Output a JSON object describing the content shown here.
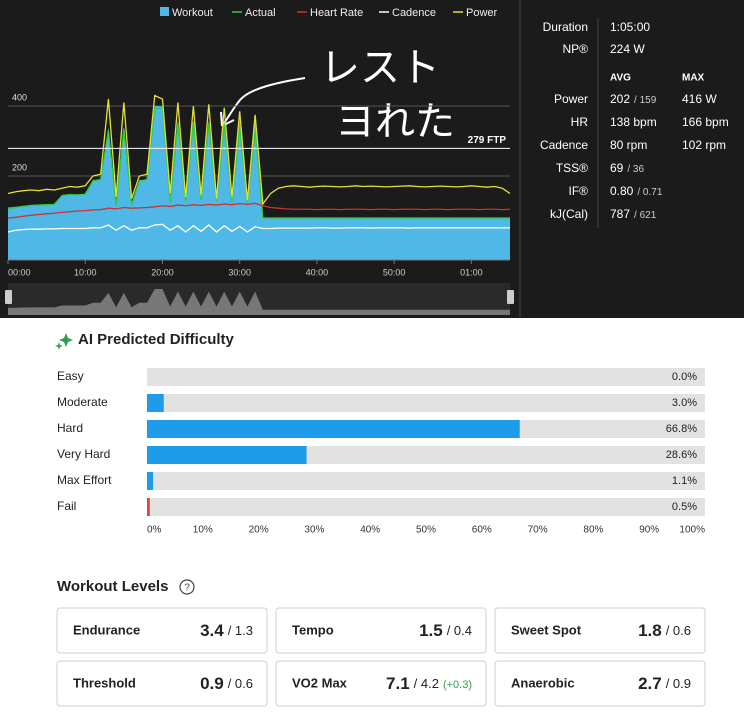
{
  "chart_data": [
    {
      "type": "line",
      "x": [
        0,
        1,
        2,
        3,
        4,
        5,
        6,
        7,
        8,
        9,
        10,
        11,
        12,
        13,
        14,
        15,
        16,
        17,
        18,
        19,
        20,
        21,
        22,
        23,
        24,
        25,
        26,
        27,
        28,
        29,
        30,
        31,
        32,
        33,
        34,
        35,
        36,
        37,
        38,
        39,
        40,
        41,
        42,
        43,
        44,
        45,
        46,
        47,
        48,
        49,
        50,
        51,
        52,
        53,
        54,
        55,
        56,
        57,
        58,
        59,
        60,
        61,
        62,
        63,
        64,
        65
      ],
      "series": [
        {
          "name": "Workout",
          "color": "#4fb8e6",
          "fill": true,
          "values": [
            110,
            112,
            115,
            117,
            118,
            118,
            118,
            146,
            146,
            146,
            146,
            189,
            189,
            340,
            120,
            340,
            120,
            189,
            189,
            400,
            400,
            130,
            360,
            130,
            360,
            130,
            360,
            130,
            360,
            130,
            360,
            130,
            360,
            80,
            80,
            80,
            80,
            80,
            80,
            80,
            80,
            80,
            80,
            80,
            80,
            80,
            80,
            80,
            80,
            80,
            80,
            80,
            80,
            80,
            80,
            80,
            80,
            80,
            80,
            80,
            80,
            80,
            80,
            80,
            80,
            80
          ]
        },
        {
          "name": "Actual",
          "color": "#2ecc40",
          "values": [
            105,
            110,
            113,
            116,
            117,
            118,
            119,
            144,
            147,
            146,
            148,
            186,
            190,
            330,
            115,
            335,
            118,
            185,
            190,
            392,
            398,
            125,
            352,
            128,
            355,
            131,
            350,
            127,
            348,
            125,
            340,
            122,
            330,
            80,
            80,
            80,
            80,
            80,
            80,
            80,
            80,
            80,
            80,
            80,
            80,
            80,
            80,
            80,
            80,
            80,
            80,
            80,
            80,
            80,
            80,
            80,
            80,
            80,
            80,
            80,
            80,
            80,
            80,
            80,
            80,
            80
          ]
        },
        {
          "name": "Heart Rate",
          "color": "#d0302f",
          "values": [
            80,
            82,
            85,
            88,
            90,
            92,
            94,
            96,
            98,
            100,
            101,
            103,
            104,
            108,
            106,
            110,
            108,
            109,
            110,
            112,
            115,
            113,
            117,
            115,
            118,
            116,
            119,
            117,
            120,
            118,
            121,
            119,
            122,
            115,
            110,
            108,
            106,
            105,
            105,
            105,
            104,
            105,
            105,
            104,
            105,
            105,
            105,
            104,
            105,
            105,
            104,
            105,
            105,
            105,
            104,
            105,
            105,
            104,
            105,
            105,
            105,
            104,
            105,
            105,
            104,
            105
          ]
        },
        {
          "name": "Cadence",
          "color": "#ffffff",
          "values": [
            40,
            45,
            47,
            48,
            48,
            49,
            49,
            50,
            50,
            50,
            50,
            52,
            52,
            60,
            45,
            58,
            45,
            52,
            52,
            60,
            62,
            45,
            58,
            40,
            58,
            42,
            60,
            40,
            58,
            42,
            56,
            40,
            55,
            50,
            50,
            51,
            51,
            51,
            51,
            51,
            52,
            52,
            51,
            51,
            52,
            52,
            52,
            51,
            52,
            52,
            52,
            52,
            51,
            52,
            52,
            52,
            52,
            52,
            52,
            52,
            52,
            52,
            52,
            52,
            52,
            52
          ]
        },
        {
          "name": "Power",
          "color": "#e3e03a",
          "values": [
            150,
            155,
            158,
            160,
            158,
            162,
            160,
            165,
            170,
            168,
            172,
            200,
            205,
            420,
            140,
            410,
            135,
            200,
            205,
            430,
            420,
            150,
            410,
            140,
            400,
            145,
            405,
            135,
            395,
            140,
            385,
            130,
            375,
            120,
            150,
            165,
            170,
            172,
            170,
            168,
            170,
            171,
            170,
            169,
            170,
            172,
            170,
            171,
            170,
            169,
            170,
            171,
            172,
            170,
            169,
            170,
            171,
            170,
            169,
            170,
            172,
            170,
            168,
            170,
            165,
            150
          ]
        }
      ],
      "xlim": [
        0,
        65
      ],
      "ylim": [
        -40,
        700
      ],
      "yticks": [
        200,
        400
      ],
      "xticks": [
        {
          "value": 0,
          "label": "00:00"
        },
        {
          "value": 10,
          "label": "10:00"
        },
        {
          "value": 20,
          "label": "20:00"
        },
        {
          "value": 30,
          "label": "30:00"
        },
        {
          "value": 40,
          "label": "40:00"
        },
        {
          "value": 50,
          "label": "50:00"
        },
        {
          "value": 60,
          "label": "01:00"
        }
      ],
      "ftp": {
        "value": 279,
        "label": "279 FTP"
      },
      "annotations": [
        "レスト",
        "ヨれた"
      ]
    },
    {
      "type": "hbar",
      "title": "AI Predicted Difficulty",
      "categories": [
        "Easy",
        "Moderate",
        "Hard",
        "Very Hard",
        "Max Effort",
        "Fail"
      ],
      "values": [
        0,
        3,
        66.8,
        28.6,
        1.1,
        0.5
      ],
      "value_labels": [
        "0.0%",
        "3.0%",
        "66.8%",
        "28.6%",
        "1.1%",
        "0.5%"
      ],
      "colors": [
        "#1e9be9",
        "#1e9be9",
        "#1e9be9",
        "#1e9be9",
        "#1e9be9",
        "#d9473a"
      ],
      "xlim": [
        0,
        100
      ],
      "xticks": [
        {
          "value": 0,
          "label": "0%"
        },
        {
          "value": 10,
          "label": "10%"
        },
        {
          "value": 20,
          "label": "20%"
        },
        {
          "value": 30,
          "label": "30%"
        },
        {
          "value": 40,
          "label": "40%"
        },
        {
          "value": 50,
          "label": "50%"
        },
        {
          "value": 60,
          "label": "60%"
        },
        {
          "value": 70,
          "label": "70%"
        },
        {
          "value": 80,
          "label": "80%"
        },
        {
          "value": 90,
          "label": "90%"
        },
        {
          "value": 100,
          "label": "100%"
        }
      ]
    }
  ],
  "stats": {
    "summary": [
      {
        "label": "Duration",
        "value": "1:05:00"
      },
      {
        "label": "NP®",
        "value": "224 W"
      }
    ],
    "columns": [
      "AVG",
      "MAX"
    ],
    "rows": [
      {
        "label": "Power",
        "avg": "202",
        "avg_alt": "/ 159",
        "max": "416 W"
      },
      {
        "label": "HR",
        "avg": "138 bpm",
        "max": "166 bpm"
      },
      {
        "label": "Cadence",
        "avg": "80 rpm",
        "max": "102 rpm"
      },
      {
        "label": "TSS®",
        "avg": "69",
        "avg_alt": "/ 36"
      },
      {
        "label": "IF®",
        "avg": "0.80",
        "avg_alt": "/ 0.71"
      },
      {
        "label": "kJ(Cal)",
        "avg": "787",
        "avg_alt": "/ 621"
      }
    ]
  },
  "workout_levels": {
    "title": "Workout Levels",
    "help": "?",
    "items": [
      {
        "name": "Endurance",
        "value": "3.4",
        "sub": "/ 1.3"
      },
      {
        "name": "Tempo",
        "value": "1.5",
        "sub": "/ 0.4"
      },
      {
        "name": "Sweet Spot",
        "value": "1.8",
        "sub": "/ 0.6"
      },
      {
        "name": "Threshold",
        "value": "0.9",
        "sub": "/ 0.6"
      },
      {
        "name": "VO2 Max",
        "value": "7.1",
        "sub": "/ 4.2",
        "change": "(+0.3)"
      },
      {
        "name": "Anaerobic",
        "value": "2.7",
        "sub": "/ 0.9"
      }
    ]
  }
}
